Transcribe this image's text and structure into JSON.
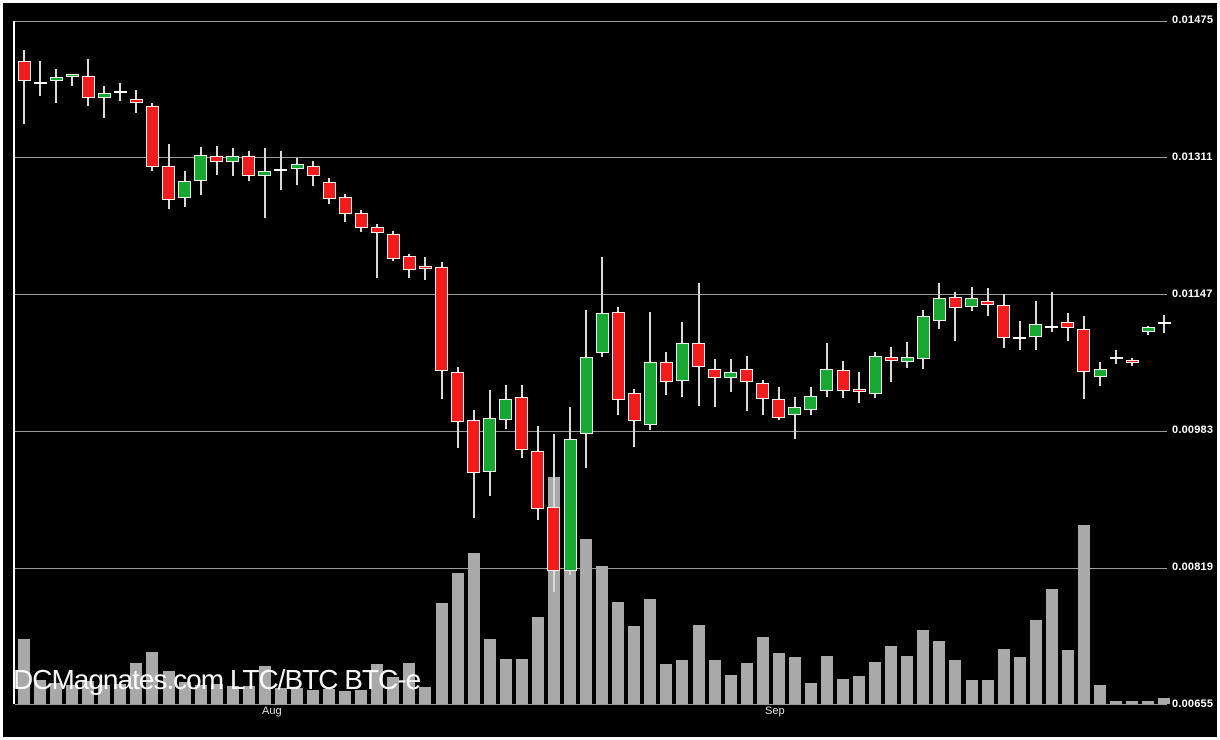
{
  "watermark": "DCMagnates.com LTC/BTC BTC-e",
  "colors": {
    "background": "#000000",
    "frame": "#ffffff",
    "up": "#17a831",
    "down": "#f21c1c",
    "doji": "#ffffff",
    "body_border": "#f0f0f0",
    "wick": "#d9d9d9",
    "volume": "#a9a9a9",
    "gridline": "#9c9c9c",
    "axis_text": "#ffffff",
    "month_text": "#e0e0e0"
  },
  "chart_data": {
    "type": "candlestick",
    "pair": "LTC/BTC",
    "exchange": "BTC-e",
    "grid": true,
    "y_axis": {
      "side": "right",
      "labels": [
        "0.01475",
        "0.01311",
        "0.01147",
        "0.00983",
        "0.00819",
        "0.00655"
      ],
      "min": 0.00655,
      "max": 0.01475
    },
    "x_axis": {
      "labels": [
        {
          "text": "Aug",
          "candle_index": 15.5
        },
        {
          "text": "Sep",
          "candle_index": 46.8
        }
      ]
    },
    "volume_note": "volume bars unlabeled; v = bar height in px on 740px canvas",
    "candles": [
      {
        "o": 0.01427,
        "h": 0.0144,
        "l": 0.01351,
        "c": 0.01403,
        "d": "r",
        "v": 65
      },
      {
        "o": 0.01401,
        "h": 0.01427,
        "l": 0.01385,
        "c": 0.01399,
        "d": "w",
        "v": 24
      },
      {
        "o": 0.01402,
        "h": 0.01417,
        "l": 0.01376,
        "c": 0.01407,
        "d": "g",
        "v": 21
      },
      {
        "o": 0.01407,
        "h": 0.01411,
        "l": 0.01397,
        "c": 0.01411,
        "d": "g",
        "v": 19
      },
      {
        "o": 0.01408,
        "h": 0.01429,
        "l": 0.01373,
        "c": 0.01382,
        "d": "r",
        "v": 23
      },
      {
        "o": 0.01382,
        "h": 0.01397,
        "l": 0.01359,
        "c": 0.01388,
        "d": "g",
        "v": 19
      },
      {
        "o": 0.01389,
        "h": 0.014,
        "l": 0.01378,
        "c": 0.01391,
        "d": "w",
        "v": 20
      },
      {
        "o": 0.01381,
        "h": 0.01392,
        "l": 0.01364,
        "c": 0.01376,
        "d": "r",
        "v": 41
      },
      {
        "o": 0.01373,
        "h": 0.01376,
        "l": 0.01295,
        "c": 0.013,
        "d": "r",
        "v": 52
      },
      {
        "o": 0.013,
        "h": 0.01327,
        "l": 0.01249,
        "c": 0.01259,
        "d": "r",
        "v": 33
      },
      {
        "o": 0.01263,
        "h": 0.01294,
        "l": 0.01251,
        "c": 0.01283,
        "d": "g",
        "v": 22
      },
      {
        "o": 0.01283,
        "h": 0.01323,
        "l": 0.01266,
        "c": 0.01314,
        "d": "g",
        "v": 19
      },
      {
        "o": 0.01313,
        "h": 0.01324,
        "l": 0.01289,
        "c": 0.01306,
        "d": "r",
        "v": 20
      },
      {
        "o": 0.01305,
        "h": 0.01322,
        "l": 0.01289,
        "c": 0.01312,
        "d": "g",
        "v": 18
      },
      {
        "o": 0.01313,
        "h": 0.01318,
        "l": 0.01282,
        "c": 0.01289,
        "d": "r",
        "v": 18
      },
      {
        "o": 0.01289,
        "h": 0.01322,
        "l": 0.01238,
        "c": 0.01295,
        "d": "g",
        "v": 38
      },
      {
        "o": 0.01295,
        "h": 0.01319,
        "l": 0.01272,
        "c": 0.01297,
        "d": "w",
        "v": 16
      },
      {
        "o": 0.01297,
        "h": 0.0131,
        "l": 0.01278,
        "c": 0.01303,
        "d": "g",
        "v": 16
      },
      {
        "o": 0.01301,
        "h": 0.01306,
        "l": 0.01276,
        "c": 0.01289,
        "d": "r",
        "v": 14
      },
      {
        "o": 0.01281,
        "h": 0.01286,
        "l": 0.01255,
        "c": 0.01261,
        "d": "r",
        "v": 15
      },
      {
        "o": 0.01263,
        "h": 0.01267,
        "l": 0.01233,
        "c": 0.01243,
        "d": "r",
        "v": 13
      },
      {
        "o": 0.01244,
        "h": 0.01248,
        "l": 0.01222,
        "c": 0.01226,
        "d": "r",
        "v": 14
      },
      {
        "o": 0.01227,
        "h": 0.01231,
        "l": 0.01166,
        "c": 0.0122,
        "d": "r",
        "v": 40
      },
      {
        "o": 0.01219,
        "h": 0.01223,
        "l": 0.01187,
        "c": 0.01189,
        "d": "r",
        "v": 27
      },
      {
        "o": 0.01193,
        "h": 0.01195,
        "l": 0.01166,
        "c": 0.01176,
        "d": "r",
        "v": 41
      },
      {
        "o": 0.01181,
        "h": 0.01191,
        "l": 0.01164,
        "c": 0.01177,
        "d": "r",
        "v": 17
      },
      {
        "o": 0.01179,
        "h": 0.01185,
        "l": 0.01021,
        "c": 0.01054,
        "d": "r",
        "v": 101
      },
      {
        "o": 0.01054,
        "h": 0.01059,
        "l": 0.00962,
        "c": 0.00994,
        "d": "r",
        "v": 131
      },
      {
        "o": 0.00996,
        "h": 0.01008,
        "l": 0.00878,
        "c": 0.00933,
        "d": "r",
        "v": 151
      },
      {
        "o": 0.00933,
        "h": 0.01032,
        "l": 0.00905,
        "c": 0.00998,
        "d": "g",
        "v": 65
      },
      {
        "o": 0.00996,
        "h": 0.01038,
        "l": 0.00985,
        "c": 0.01021,
        "d": "g",
        "v": 45
      },
      {
        "o": 0.01023,
        "h": 0.01038,
        "l": 0.00951,
        "c": 0.00959,
        "d": "r",
        "v": 45
      },
      {
        "o": 0.00959,
        "h": 0.00989,
        "l": 0.00876,
        "c": 0.0089,
        "d": "r",
        "v": 87
      },
      {
        "o": 0.00892,
        "h": 0.00979,
        "l": 0.0079,
        "c": 0.00815,
        "d": "r",
        "v": 227
      },
      {
        "o": 0.00815,
        "h": 0.01012,
        "l": 0.0081,
        "c": 0.00973,
        "d": "g",
        "v": 135
      },
      {
        "o": 0.00979,
        "h": 0.01128,
        "l": 0.00939,
        "c": 0.01071,
        "d": "g",
        "v": 165
      },
      {
        "o": 0.01076,
        "h": 0.01191,
        "l": 0.01071,
        "c": 0.01124,
        "d": "g",
        "v": 138
      },
      {
        "o": 0.01126,
        "h": 0.01132,
        "l": 0.01002,
        "c": 0.01021,
        "d": "r",
        "v": 102
      },
      {
        "o": 0.01028,
        "h": 0.01033,
        "l": 0.00964,
        "c": 0.00994,
        "d": "r",
        "v": 78
      },
      {
        "o": 0.0099,
        "h": 0.01126,
        "l": 0.00985,
        "c": 0.01065,
        "d": "g",
        "v": 105
      },
      {
        "o": 0.01066,
        "h": 0.01078,
        "l": 0.01027,
        "c": 0.01042,
        "d": "r",
        "v": 40
      },
      {
        "o": 0.01042,
        "h": 0.01113,
        "l": 0.01023,
        "c": 0.01088,
        "d": "g",
        "v": 44
      },
      {
        "o": 0.01088,
        "h": 0.0116,
        "l": 0.01012,
        "c": 0.01059,
        "d": "r",
        "v": 79
      },
      {
        "o": 0.01057,
        "h": 0.01069,
        "l": 0.01012,
        "c": 0.01046,
        "d": "r",
        "v": 44
      },
      {
        "o": 0.01047,
        "h": 0.01069,
        "l": 0.01029,
        "c": 0.01054,
        "d": "g",
        "v": 29
      },
      {
        "o": 0.01057,
        "h": 0.01073,
        "l": 0.01007,
        "c": 0.01042,
        "d": "r",
        "v": 41
      },
      {
        "o": 0.0104,
        "h": 0.01044,
        "l": 0.01002,
        "c": 0.01021,
        "d": "r",
        "v": 67
      },
      {
        "o": 0.01021,
        "h": 0.01036,
        "l": 0.00996,
        "c": 0.00998,
        "d": "r",
        "v": 51
      },
      {
        "o": 0.01001,
        "h": 0.01023,
        "l": 0.00973,
        "c": 0.01011,
        "d": "g",
        "v": 47
      },
      {
        "o": 0.01008,
        "h": 0.01036,
        "l": 0.01002,
        "c": 0.01025,
        "d": "g",
        "v": 21
      },
      {
        "o": 0.01031,
        "h": 0.01088,
        "l": 0.01023,
        "c": 0.01057,
        "d": "g",
        "v": 48
      },
      {
        "o": 0.01056,
        "h": 0.01067,
        "l": 0.01023,
        "c": 0.01031,
        "d": "r",
        "v": 25
      },
      {
        "o": 0.01033,
        "h": 0.01054,
        "l": 0.01017,
        "c": 0.01029,
        "d": "r",
        "v": 28
      },
      {
        "o": 0.01027,
        "h": 0.01077,
        "l": 0.01022,
        "c": 0.01073,
        "d": "g",
        "v": 42
      },
      {
        "o": 0.01071,
        "h": 0.01084,
        "l": 0.01042,
        "c": 0.01066,
        "d": "r",
        "v": 58
      },
      {
        "o": 0.01066,
        "h": 0.0109,
        "l": 0.01059,
        "c": 0.01072,
        "d": "g",
        "v": 48
      },
      {
        "o": 0.01069,
        "h": 0.01128,
        "l": 0.01057,
        "c": 0.01121,
        "d": "g",
        "v": 74
      },
      {
        "o": 0.01115,
        "h": 0.0116,
        "l": 0.01105,
        "c": 0.01142,
        "d": "g",
        "v": 63
      },
      {
        "o": 0.01143,
        "h": 0.01149,
        "l": 0.0109,
        "c": 0.0113,
        "d": "r",
        "v": 44
      },
      {
        "o": 0.01131,
        "h": 0.01155,
        "l": 0.01126,
        "c": 0.01142,
        "d": "g",
        "v": 24
      },
      {
        "o": 0.01139,
        "h": 0.01154,
        "l": 0.0112,
        "c": 0.01134,
        "d": "r",
        "v": 24
      },
      {
        "o": 0.01134,
        "h": 0.01147,
        "l": 0.01082,
        "c": 0.01094,
        "d": "r",
        "v": 55
      },
      {
        "o": 0.01094,
        "h": 0.01115,
        "l": 0.0108,
        "c": 0.01096,
        "d": "w",
        "v": 47
      },
      {
        "o": 0.01095,
        "h": 0.01139,
        "l": 0.0108,
        "c": 0.01111,
        "d": "g",
        "v": 84
      },
      {
        "o": 0.01107,
        "h": 0.01149,
        "l": 0.01101,
        "c": 0.01109,
        "d": "w",
        "v": 115
      },
      {
        "o": 0.01113,
        "h": 0.01124,
        "l": 0.0109,
        "c": 0.01106,
        "d": "r",
        "v": 54
      },
      {
        "o": 0.01105,
        "h": 0.01121,
        "l": 0.01021,
        "c": 0.01053,
        "d": "r",
        "v": 179
      },
      {
        "o": 0.01047,
        "h": 0.01065,
        "l": 0.01036,
        "c": 0.01057,
        "d": "g",
        "v": 19
      },
      {
        "o": 0.01072,
        "h": 0.0108,
        "l": 0.01063,
        "c": 0.0107,
        "d": "r",
        "v": 3
      },
      {
        "o": 0.01068,
        "h": 0.0107,
        "l": 0.0106,
        "c": 0.01065,
        "d": "r",
        "v": 3
      },
      {
        "o": 0.01101,
        "h": 0.01109,
        "l": 0.01098,
        "c": 0.01107,
        "d": "g",
        "v": 3
      },
      {
        "o": 0.01112,
        "h": 0.01122,
        "l": 0.01101,
        "c": 0.01113,
        "d": "w",
        "v": 6
      }
    ]
  }
}
